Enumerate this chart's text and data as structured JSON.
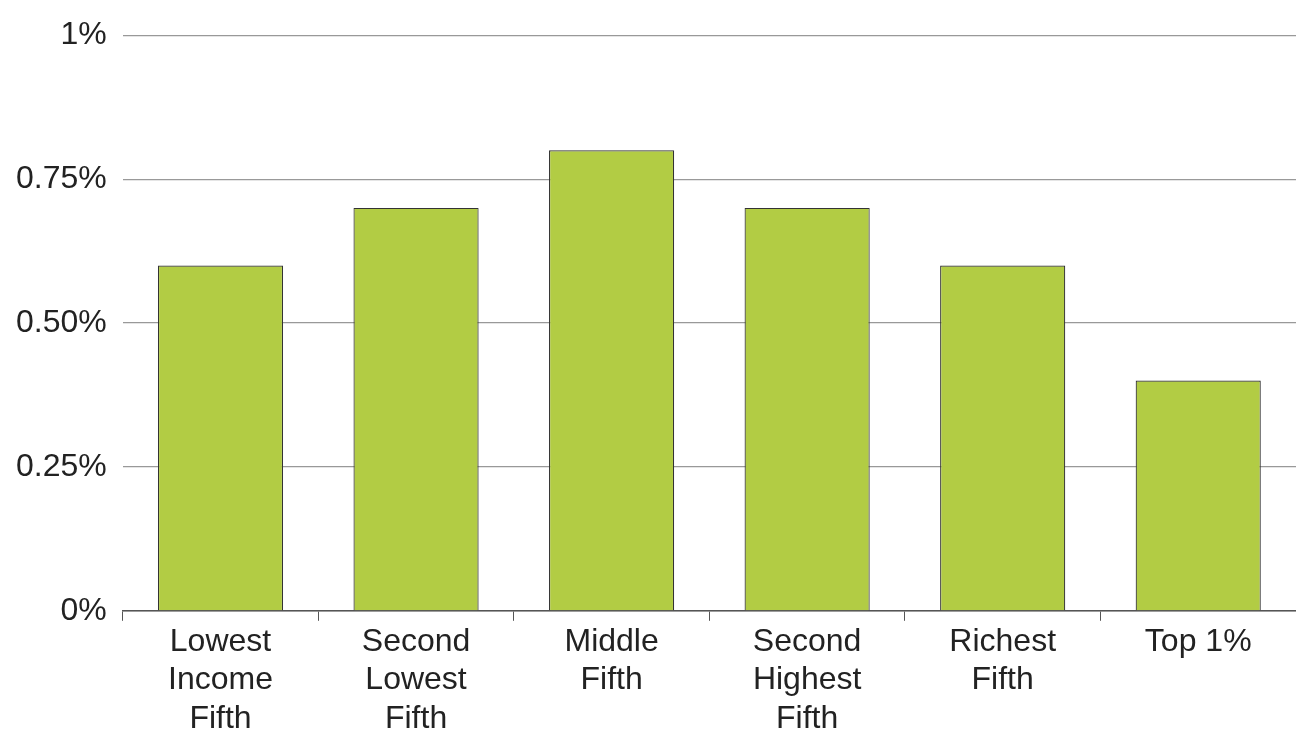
{
  "chart_data": {
    "type": "bar",
    "categories": [
      "Lowest Income Fifth",
      "Second Lowest Fifth",
      "Middle Fifth",
      "Second Highest Fifth",
      "Richest Fifth",
      "Top 1%"
    ],
    "values": [
      0.6,
      0.7,
      0.8,
      0.7,
      0.6,
      0.4
    ],
    "color": "#b2cc44",
    "ylim": [
      0,
      1
    ],
    "yticks": [
      {
        "value": 0,
        "label": "0%"
      },
      {
        "value": 0.25,
        "label": "0.25%"
      },
      {
        "value": 0.5,
        "label": "0.50%"
      },
      {
        "value": 0.75,
        "label": "0.75%"
      },
      {
        "value": 1,
        "label": "1%"
      }
    ],
    "grid": "y"
  }
}
